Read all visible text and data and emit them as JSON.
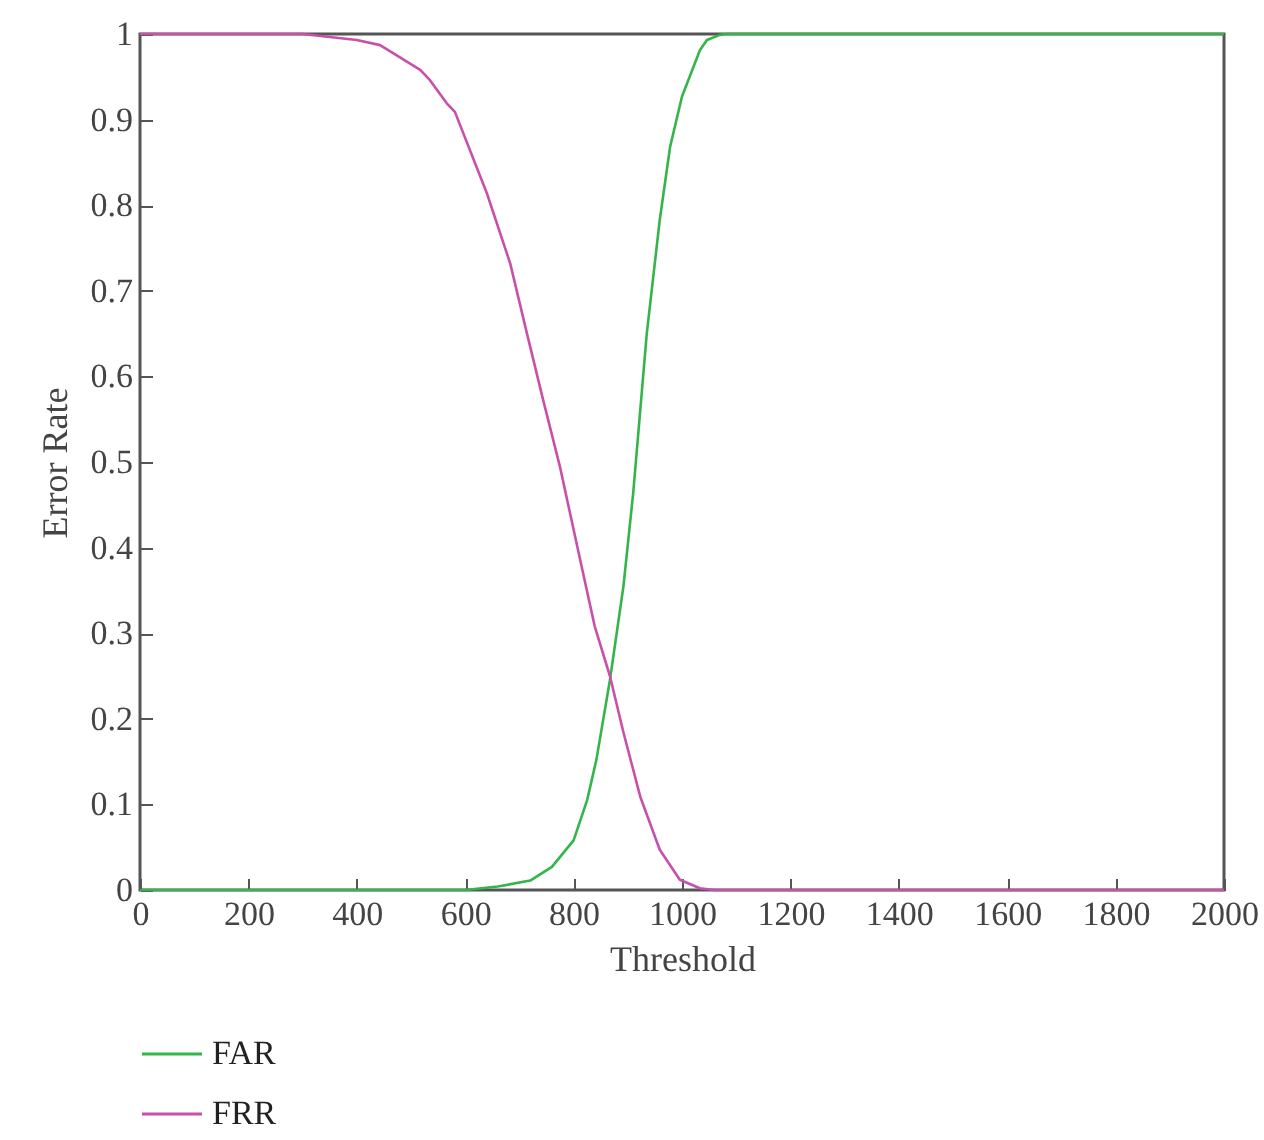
{
  "chart_data": {
    "type": "line",
    "xlabel": "Threshold",
    "ylabel": "Error Rate",
    "xlim": [
      0,
      2000
    ],
    "ylim": [
      0,
      1
    ],
    "xticks": [
      0,
      200,
      400,
      600,
      800,
      1000,
      1200,
      1400,
      1600,
      1800,
      2000
    ],
    "yticks": [
      0,
      0.1,
      0.2,
      0.3,
      0.4,
      0.5,
      0.6,
      0.7,
      0.8,
      0.9,
      1
    ],
    "grid": false,
    "legend": "bottom left",
    "marker": "none",
    "line_style": "solid",
    "series": [
      {
        "name": "FAR",
        "color": "#33b54a",
        "x": [
          0,
          600,
          660,
          720,
          760,
          800,
          825,
          842,
          867,
          892,
          910,
          935,
          959,
          978,
          1000,
          1033,
          1046,
          1070,
          1082,
          1200,
          1600,
          2000
        ],
        "values": [
          0,
          0,
          0.004,
          0.011,
          0.027,
          0.058,
          0.105,
          0.152,
          0.245,
          0.355,
          0.464,
          0.65,
          0.783,
          0.868,
          0.927,
          0.981,
          0.993,
          0.999,
          1,
          1,
          1,
          1
        ]
      },
      {
        "name": "FRR",
        "color": "#c94fac",
        "x": [
          0,
          200,
          300,
          400,
          443,
          517,
          535,
          566,
          581,
          640,
          683,
          714,
          744,
          775,
          812,
          839,
          867,
          892,
          923,
          959,
          996,
          1033,
          1060,
          1200,
          1600,
          2000
        ],
        "values": [
          1,
          1,
          1,
          0.993,
          0.987,
          0.958,
          0.946,
          0.919,
          0.909,
          0.814,
          0.732,
          0.65,
          0.572,
          0.494,
          0.386,
          0.308,
          0.25,
          0.184,
          0.109,
          0.047,
          0.012,
          0.002,
          0,
          0,
          0,
          0
        ]
      }
    ]
  }
}
